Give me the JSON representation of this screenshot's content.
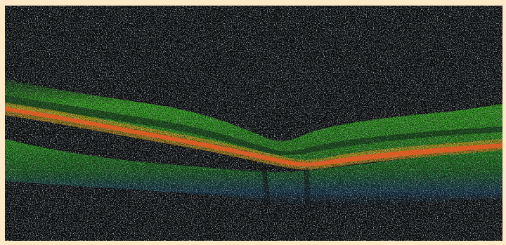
{
  "image": {
    "kind": "oct-retinal-cross-section",
    "colors": {
      "frame": "#fde8c8",
      "background": "#0b0b0d",
      "noise": "#2b3a3a",
      "nerve_fiber_layer": "#38c21c",
      "ganglion_layer": "#1f8f1a",
      "rpe_band_core": "#e2561b",
      "rpe_band_edge": "#d9a21c",
      "choroid_green": "#2fb81c",
      "choroid_blue": "#1b5d8a"
    }
  }
}
